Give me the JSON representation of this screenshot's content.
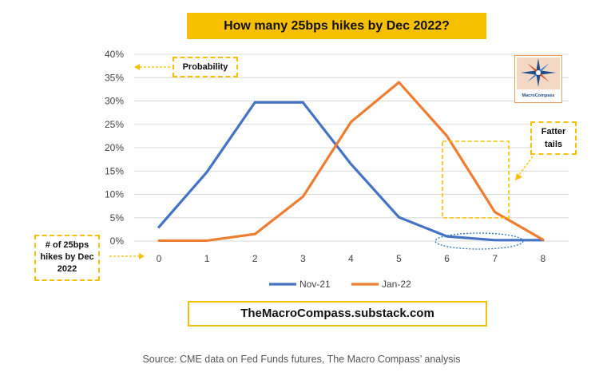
{
  "title": "How many 25bps hikes by Dec 2022?",
  "annotations": {
    "probability": "Probability",
    "fatter_tails": "Fatter tails",
    "hikes_label": "# of 25bps hikes by Dec 2022"
  },
  "website": "TheMacroCompass.substack.com",
  "source": "Source: CME data on Fed Funds futures, The Macro Compass’ analysis",
  "logo_text": "The MacroCompass",
  "colors": {
    "nov": "#4472c4",
    "jan": "#ed7d31",
    "accent": "#f6c000",
    "grid": "#d9d9d9"
  },
  "chart_data": {
    "type": "line",
    "categories": [
      "0",
      "1",
      "2",
      "3",
      "4",
      "5",
      "6",
      "7",
      "8"
    ],
    "y_ticks": [
      "0%",
      "5%",
      "10%",
      "15%",
      "20%",
      "25%",
      "30%",
      "35%",
      "40%"
    ],
    "ylim": [
      0,
      40
    ],
    "grid": true,
    "legend_position": "bottom",
    "series": [
      {
        "name": "Nov-21",
        "values": [
          3.0,
          14.8,
          29.7,
          29.7,
          16.5,
          5.1,
          1.0,
          0.2,
          0.2
        ]
      },
      {
        "name": "Jan-22",
        "values": [
          0.1,
          0.1,
          1.5,
          9.5,
          25.5,
          34.0,
          22.5,
          6.2,
          0.3
        ]
      }
    ]
  }
}
